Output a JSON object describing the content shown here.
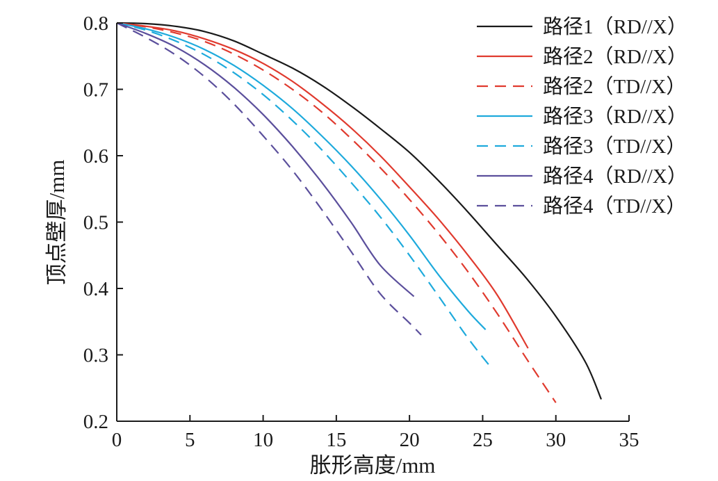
{
  "chart_data": {
    "type": "line",
    "xlabel": "胀形高度/mm",
    "ylabel": "顶点壁厚/mm",
    "xlim": [
      0,
      35
    ],
    "ylim": [
      0.2,
      0.8
    ],
    "xticks": [
      "0",
      "5",
      "10",
      "15",
      "20",
      "25",
      "30",
      "35"
    ],
    "yticks": [
      "0.2",
      "0.3",
      "0.4",
      "0.5",
      "0.6",
      "0.7",
      "0.8"
    ],
    "xtick_values": [
      0,
      5,
      10,
      15,
      20,
      25,
      30,
      35
    ],
    "ytick_values": [
      0.2,
      0.3,
      0.4,
      0.5,
      0.6,
      0.7,
      0.8
    ],
    "legend_position": "top-right",
    "grid": false,
    "series": [
      {
        "name": "路径1（RD//X）",
        "color": "#1a1a1a",
        "dash": "solid",
        "x": [
          0,
          2,
          4,
          6,
          8,
          10,
          12,
          14,
          16,
          18,
          20,
          22,
          24,
          26,
          28,
          30,
          32,
          33.1
        ],
        "y": [
          0.8,
          0.799,
          0.795,
          0.787,
          0.773,
          0.753,
          0.732,
          0.706,
          0.675,
          0.641,
          0.605,
          0.562,
          0.515,
          0.465,
          0.415,
          0.358,
          0.29,
          0.233
        ]
      },
      {
        "name": "路径2（RD//X）",
        "color": "#e03a2e",
        "dash": "solid",
        "x": [
          0,
          2,
          4,
          6,
          8,
          10,
          12,
          14,
          16,
          18,
          20,
          22,
          24,
          26,
          28.1
        ],
        "y": [
          0.8,
          0.795,
          0.788,
          0.776,
          0.76,
          0.739,
          0.712,
          0.679,
          0.642,
          0.6,
          0.553,
          0.504,
          0.45,
          0.39,
          0.31
        ]
      },
      {
        "name": "路径2（TD//X）",
        "color": "#e03a2e",
        "dash": "dashed",
        "x": [
          0,
          2,
          4,
          6,
          8,
          10,
          12,
          14,
          16,
          18,
          20,
          22,
          24,
          26,
          28,
          30
        ],
        "y": [
          0.8,
          0.794,
          0.785,
          0.772,
          0.753,
          0.729,
          0.7,
          0.666,
          0.626,
          0.582,
          0.534,
          0.482,
          0.425,
          0.362,
          0.294,
          0.228
        ]
      },
      {
        "name": "路径3（RD//X）",
        "color": "#1eaadc",
        "dash": "solid",
        "x": [
          0,
          2,
          4,
          6,
          8,
          10,
          12,
          14,
          16,
          18,
          20,
          22,
          24,
          25.2
        ],
        "y": [
          0.8,
          0.791,
          0.778,
          0.76,
          0.736,
          0.706,
          0.671,
          0.63,
          0.585,
          0.535,
          0.48,
          0.42,
          0.366,
          0.338
        ]
      },
      {
        "name": "路径3（TD//X）",
        "color": "#1eaadc",
        "dash": "dashed",
        "x": [
          0,
          2,
          4,
          6,
          8,
          10,
          12,
          14,
          16,
          18,
          20,
          22,
          24,
          25.6
        ],
        "y": [
          0.8,
          0.789,
          0.773,
          0.752,
          0.725,
          0.692,
          0.653,
          0.609,
          0.56,
          0.508,
          0.45,
          0.388,
          0.325,
          0.28
        ]
      },
      {
        "name": "路径4（RD//X）",
        "color": "#5b4f9c",
        "dash": "solid",
        "x": [
          0,
          2,
          4,
          6,
          8,
          10,
          12,
          14,
          16,
          18,
          20.3
        ],
        "y": [
          0.8,
          0.784,
          0.764,
          0.737,
          0.703,
          0.662,
          0.614,
          0.56,
          0.5,
          0.435,
          0.388
        ]
      },
      {
        "name": "路径4（TD//X）",
        "color": "#5b4f9c",
        "dash": "dashed",
        "x": [
          0,
          2,
          4,
          6,
          8,
          10,
          12,
          14,
          16,
          18,
          20,
          20.8
        ],
        "y": [
          0.8,
          0.778,
          0.752,
          0.719,
          0.678,
          0.63,
          0.578,
          0.519,
          0.456,
          0.392,
          0.348,
          0.33
        ]
      }
    ]
  }
}
